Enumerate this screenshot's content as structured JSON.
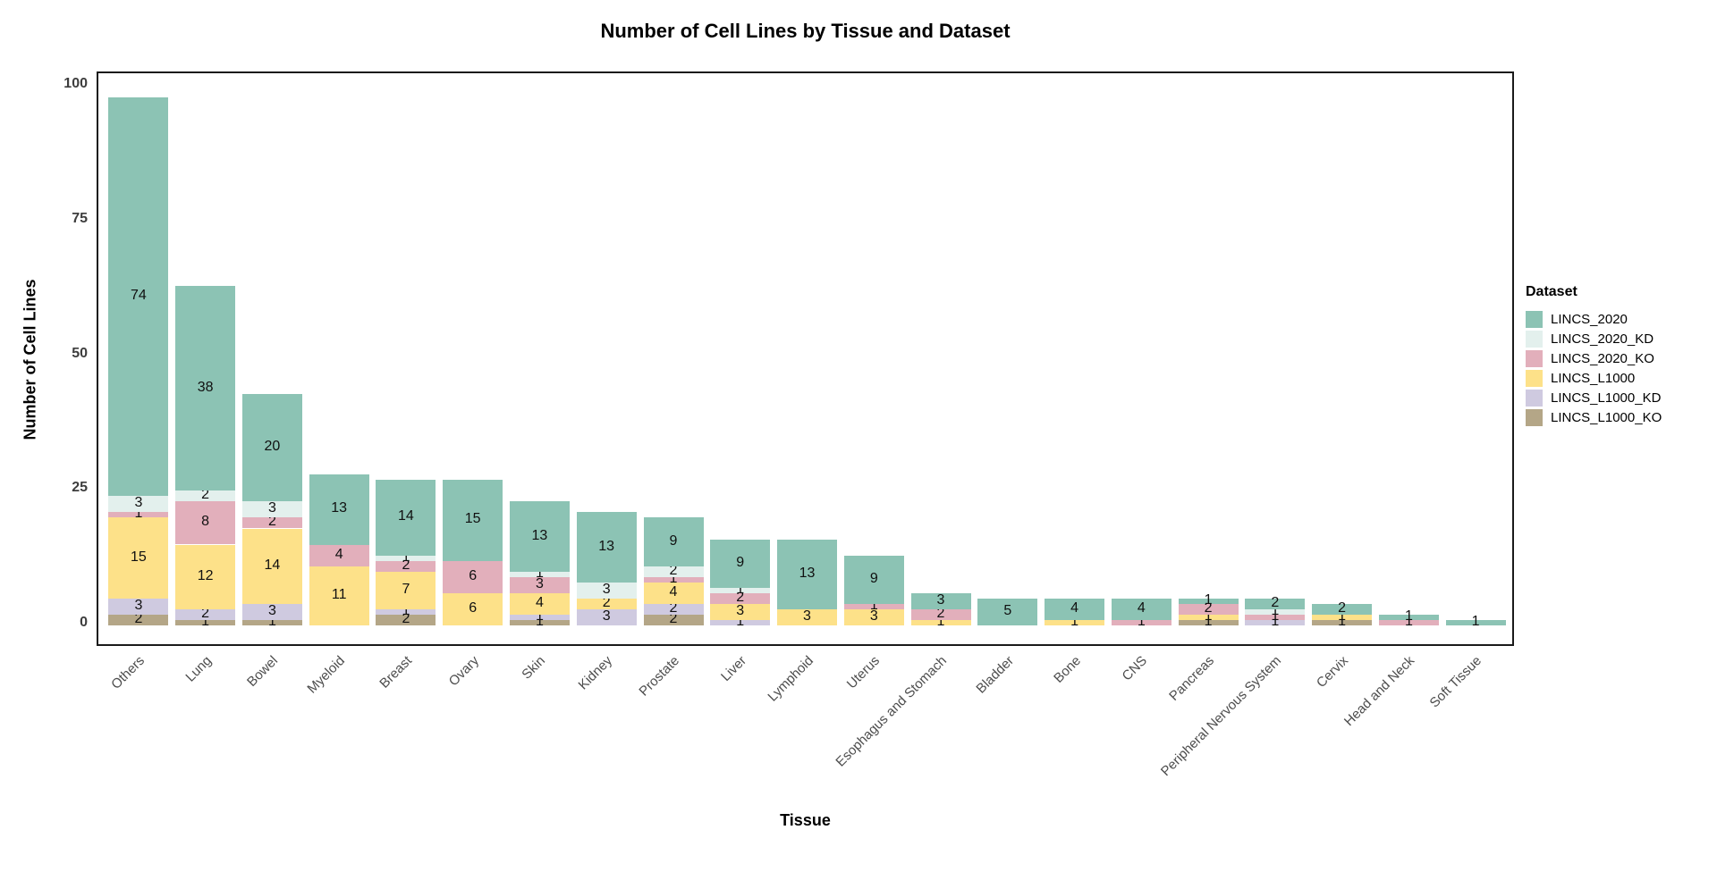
{
  "chart_data": {
    "type": "bar",
    "stacked": true,
    "title": "Number of Cell Lines by Tissue and Dataset",
    "xlabel": "Tissue",
    "ylabel": "Number of Cell Lines",
    "ylim": [
      0,
      100
    ],
    "y_ticks": [
      0,
      25,
      50,
      75,
      100
    ],
    "grid": false,
    "legend_position": "right",
    "bar_value_labels": true,
    "categories": [
      "Others",
      "Lung",
      "Bowel",
      "Myeloid",
      "Breast",
      "Ovary",
      "Skin",
      "Kidney",
      "Prostate",
      "Liver",
      "Lymphoid",
      "Uterus",
      "Esophagus and Stomach",
      "Bladder",
      "Bone",
      "CNS",
      "Pancreas",
      "Peripheral Nervous System",
      "Cervix",
      "Head and Neck",
      "Soft Tissue"
    ],
    "series": [
      {
        "name": "LINCS_2020",
        "color": "#8CC3B4",
        "values": [
          74,
          38,
          20,
          13,
          14,
          15,
          13,
          13,
          9,
          9,
          13,
          9,
          3,
          5,
          4,
          4,
          1,
          2,
          2,
          1,
          1
        ]
      },
      {
        "name": "LINCS_2020_KD",
        "color": "#E3F0ED",
        "values": [
          3,
          2,
          3,
          0,
          1,
          0,
          1,
          3,
          2,
          1,
          0,
          0,
          0,
          0,
          0,
          0,
          0,
          1,
          0,
          0,
          0
        ]
      },
      {
        "name": "LINCS_2020_KO",
        "color": "#E2AFBB",
        "values": [
          1,
          8,
          2,
          4,
          2,
          6,
          3,
          0,
          1,
          2,
          0,
          1,
          2,
          0,
          0,
          1,
          2,
          1,
          0,
          1,
          0
        ]
      },
      {
        "name": "LINCS_L1000",
        "color": "#FDE189",
        "values": [
          15,
          12,
          14,
          11,
          7,
          6,
          4,
          2,
          4,
          3,
          3,
          3,
          1,
          0,
          1,
          0,
          1,
          0,
          1,
          0,
          0
        ]
      },
      {
        "name": "LINCS_L1000_KD",
        "color": "#CFCAE0",
        "values": [
          3,
          2,
          3,
          0,
          1,
          0,
          1,
          3,
          2,
          1,
          0,
          0,
          0,
          0,
          0,
          0,
          0,
          1,
          0,
          0,
          0
        ]
      },
      {
        "name": "LINCS_L1000_KO",
        "color": "#B4A687",
        "values": [
          2,
          1,
          1,
          0,
          2,
          0,
          1,
          0,
          2,
          0,
          0,
          0,
          0,
          0,
          0,
          0,
          1,
          0,
          1,
          0,
          0
        ]
      }
    ],
    "stack_order_bottom_to_top": [
      "LINCS_L1000_KO",
      "LINCS_L1000_KD",
      "LINCS_L1000",
      "LINCS_2020_KO",
      "LINCS_2020_KD",
      "LINCS_2020"
    ],
    "bar_totals": [
      98,
      63,
      43,
      28,
      27,
      27,
      23,
      21,
      20,
      16,
      16,
      13,
      6,
      5,
      5,
      5,
      5,
      5,
      4,
      2,
      1
    ]
  },
  "legend": {
    "title": "Dataset",
    "items": [
      {
        "label": "LINCS_2020",
        "color": "#8CC3B4"
      },
      {
        "label": "LINCS_2020_KD",
        "color": "#E3F0ED"
      },
      {
        "label": "LINCS_2020_KO",
        "color": "#E2AFBB"
      },
      {
        "label": "LINCS_L1000",
        "color": "#FDE189"
      },
      {
        "label": "LINCS_L1000_KD",
        "color": "#CFCAE0"
      },
      {
        "label": "LINCS_L1000_KO",
        "color": "#B4A687"
      }
    ]
  },
  "colors": {
    "panel_border": "#1a1a1a",
    "axis_text_y": "#3d3d3d",
    "axis_text_x": "#4d4d4d",
    "background": "#ffffff"
  }
}
